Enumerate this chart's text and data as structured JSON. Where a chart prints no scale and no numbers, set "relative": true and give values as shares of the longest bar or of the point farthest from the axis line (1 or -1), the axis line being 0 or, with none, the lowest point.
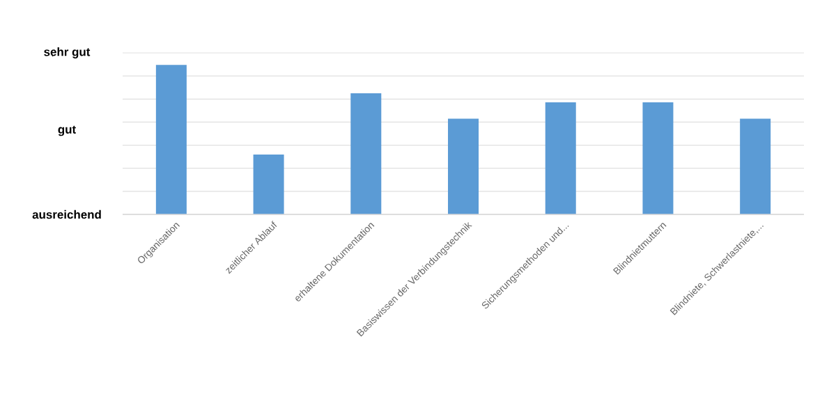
{
  "chart_data": {
    "type": "bar",
    "categories": [
      "Organisation",
      "zeitlicher Ablauf",
      "erhaltene Dokumentation",
      "Basiswissen der Verbindungstechnik",
      "Sicherungsmethoden und...",
      "Blindnietmuttern",
      "Blindniete, Schwerlastniete,..."
    ],
    "values": [
      1,
      0.4,
      0.81,
      0.64,
      0.75,
      0.75,
      0.64
    ],
    "color": "#5b9bd5",
    "relative": true,
    "annotations": [
      "sehr gut",
      "gut",
      "ausreichend"
    ],
    "grid": "y"
  }
}
